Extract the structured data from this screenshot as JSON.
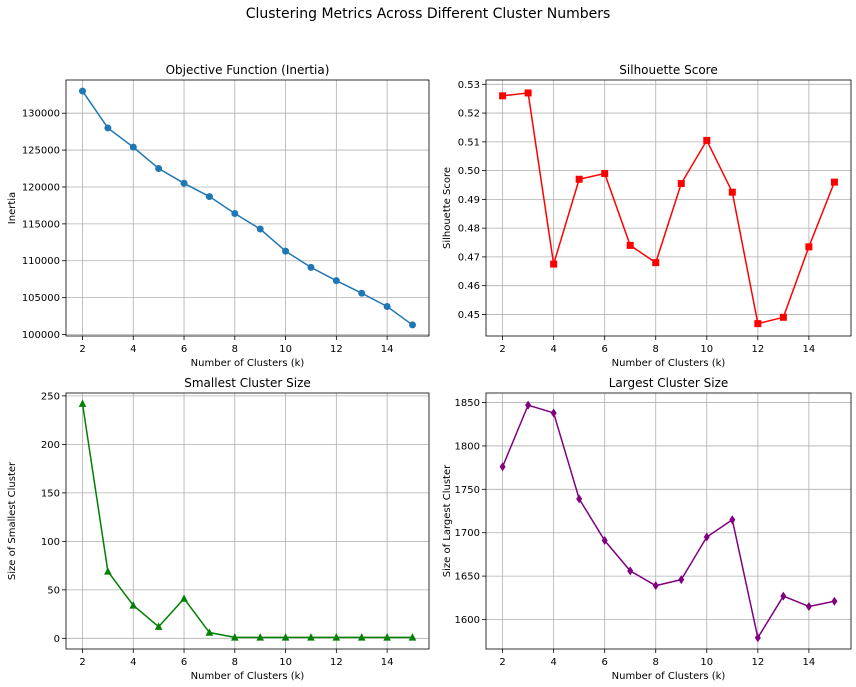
{
  "suptitle": "Clustering Metrics Across Different Cluster Numbers",
  "chart_data": [
    {
      "type": "line",
      "title": "Objective Function (Inertia)",
      "xlabel": "Number of Clusters (k)",
      "ylabel": "Inertia",
      "x": [
        2,
        3,
        4,
        5,
        6,
        7,
        8,
        9,
        10,
        11,
        12,
        13,
        14,
        15
      ],
      "xticks": [
        2,
        4,
        6,
        8,
        10,
        12,
        14
      ],
      "xlim": [
        1.35,
        15.65
      ],
      "yticks": [
        100000,
        105000,
        110000,
        115000,
        120000,
        125000,
        130000
      ],
      "ytick_labels": [
        "100000",
        "105000",
        "110000",
        "115000",
        "120000",
        "125000",
        "130000"
      ],
      "ylim": [
        99800,
        134500
      ],
      "grid": true,
      "series": [
        {
          "values": [
            133000,
            128000,
            125400,
            122500,
            120500,
            118700,
            116400,
            114300,
            111300,
            109100,
            107300,
            105600,
            103800,
            101300
          ],
          "color": "#1f77b4",
          "marker": "circle"
        }
      ]
    },
    {
      "type": "line",
      "title": "Silhouette Score",
      "xlabel": "Number of Clusters (k)",
      "ylabel": "Silhouette Score",
      "x": [
        2,
        3,
        4,
        5,
        6,
        7,
        8,
        9,
        10,
        11,
        12,
        13,
        14,
        15
      ],
      "xticks": [
        2,
        4,
        6,
        8,
        10,
        12,
        14
      ],
      "xlim": [
        1.35,
        15.65
      ],
      "yticks": [
        0.45,
        0.46,
        0.47,
        0.48,
        0.49,
        0.5,
        0.51,
        0.52,
        0.53
      ],
      "ytick_labels": [
        "0.45",
        "0.46",
        "0.47",
        "0.48",
        "0.49",
        "0.50",
        "0.51",
        "0.52",
        "0.53"
      ],
      "ylim": [
        0.4425,
        0.5315
      ],
      "grid": true,
      "series": [
        {
          "values": [
            0.526,
            0.527,
            0.4675,
            0.497,
            0.499,
            0.474,
            0.468,
            0.4955,
            0.5105,
            0.4925,
            0.4468,
            0.449,
            0.4735,
            0.496
          ],
          "color": "#ff0000",
          "marker": "square"
        }
      ]
    },
    {
      "type": "line",
      "title": "Smallest Cluster Size",
      "xlabel": "Number of Clusters (k)",
      "ylabel": "Size of Smallest Cluster",
      "x": [
        2,
        3,
        4,
        5,
        6,
        7,
        8,
        9,
        10,
        11,
        12,
        13,
        14,
        15
      ],
      "xticks": [
        2,
        4,
        6,
        8,
        10,
        12,
        14
      ],
      "xlim": [
        1.35,
        15.65
      ],
      "yticks": [
        0,
        50,
        100,
        150,
        200,
        250
      ],
      "ytick_labels": [
        "0",
        "50",
        "100",
        "150",
        "200",
        "250"
      ],
      "ylim": [
        -11,
        253
      ],
      "grid": true,
      "series": [
        {
          "values": [
            242,
            69,
            34,
            12,
            41,
            6,
            1,
            1,
            1,
            1,
            1,
            1,
            1,
            1
          ],
          "color": "#008000",
          "marker": "triangle"
        }
      ]
    },
    {
      "type": "line",
      "title": "Largest Cluster Size",
      "xlabel": "Number of Clusters (k)",
      "ylabel": "Size of Largest Cluster",
      "x": [
        2,
        3,
        4,
        5,
        6,
        7,
        8,
        9,
        10,
        11,
        12,
        13,
        14,
        15
      ],
      "xticks": [
        2,
        4,
        6,
        8,
        10,
        12,
        14
      ],
      "xlim": [
        1.35,
        15.65
      ],
      "yticks": [
        1600,
        1650,
        1700,
        1750,
        1800,
        1850
      ],
      "ytick_labels": [
        "1600",
        "1650",
        "1700",
        "1750",
        "1800",
        "1850"
      ],
      "ylim": [
        1566,
        1861
      ],
      "grid": true,
      "series": [
        {
          "values": [
            1776,
            1847,
            1838,
            1739,
            1691,
            1656,
            1639,
            1646,
            1695,
            1715,
            1579,
            1627,
            1615,
            1621
          ],
          "color": "#800080",
          "marker": "diamond"
        }
      ]
    }
  ]
}
